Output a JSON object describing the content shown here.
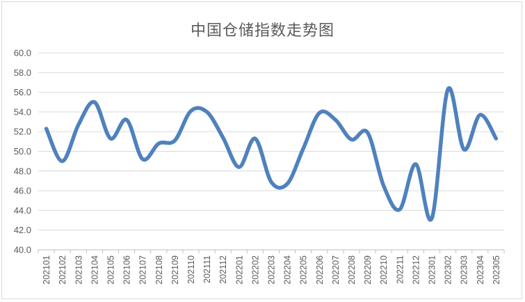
{
  "chart_data": {
    "type": "line",
    "title": "中国仓储指数走势图",
    "xlabel": "",
    "ylabel": "",
    "ylim": [
      40,
      60
    ],
    "y_ticks": [
      "40.0",
      "42.0",
      "44.0",
      "46.0",
      "48.0",
      "50.0",
      "52.0",
      "54.0",
      "56.0",
      "58.0",
      "60.0"
    ],
    "grid": true,
    "legend": "none",
    "categories": [
      "202101",
      "202102",
      "202103",
      "202104",
      "202105",
      "202106",
      "202107",
      "202108",
      "202109",
      "202110",
      "202111",
      "202112",
      "202201",
      "202202",
      "202203",
      "202204",
      "202205",
      "202206",
      "202207",
      "202208",
      "202209",
      "202210",
      "202211",
      "202212",
      "202301",
      "202302",
      "202303",
      "202304",
      "202305"
    ],
    "series": [
      {
        "color": "#4f81bd",
        "values": [
          52.3,
          49.0,
          52.7,
          55.0,
          51.3,
          53.2,
          49.2,
          50.8,
          51.1,
          54.1,
          54.0,
          51.4,
          48.4,
          51.3,
          46.9,
          46.7,
          50.3,
          53.9,
          53.2,
          51.2,
          51.9,
          46.5,
          44.1,
          48.7,
          43.2,
          56.3,
          50.2,
          53.7,
          51.3
        ]
      }
    ],
    "colors": {
      "line": "#4f81bd",
      "grid": "#d9d9d9",
      "axis": "#bfbfbf",
      "text": "#595959"
    }
  }
}
